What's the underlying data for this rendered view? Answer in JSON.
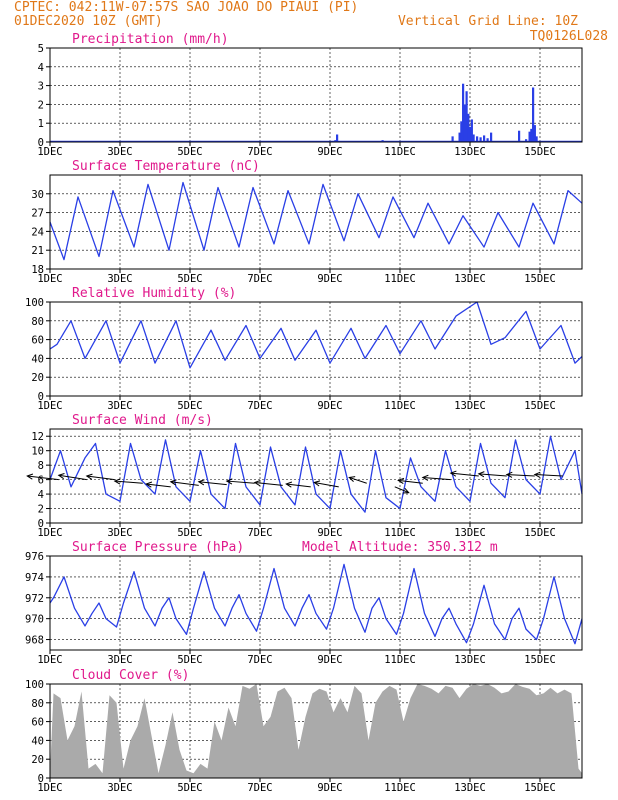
{
  "header": {
    "line1": "CPTEC:   042:11W-07:57S  SAO JOAO DO PIAUI (PI)",
    "line2_left": "01DEC2020 10Z (GMT)",
    "line2_right": "Vertical Grid Line: 10Z",
    "line3_right": "TQ0126L028"
  },
  "colors": {
    "header": "#e07818",
    "title": "#e0198c",
    "line": "#2a3fe6",
    "cloud": "#aaaaaa",
    "grid": "#000000"
  },
  "x_axis": {
    "tick_labels": [
      "1DEC",
      "3DEC",
      "5DEC",
      "7DEC",
      "9DEC",
      "11DEC",
      "13DEC",
      "15DEC"
    ],
    "tick_days": [
      1,
      3,
      5,
      7,
      9,
      11,
      13,
      15
    ],
    "range_days": [
      1,
      16.2
    ]
  },
  "chart_data": [
    {
      "type": "bar",
      "title": "Precipitation (mm/h)",
      "ylim": [
        0,
        5
      ],
      "yticks": [
        0,
        1,
        2,
        3,
        4,
        5
      ],
      "x_unit": "day of Dec 2020",
      "x": [
        9.15,
        9.2,
        10.1,
        10.5,
        12.5,
        12.7,
        12.75,
        12.8,
        12.85,
        12.9,
        12.95,
        13.0,
        13.05,
        13.1,
        13.2,
        13.3,
        13.4,
        13.5,
        13.6,
        14.4,
        14.6,
        14.7,
        14.75,
        14.8,
        14.85,
        14.9
      ],
      "values": [
        0.1,
        0.4,
        0.05,
        0.1,
        0.3,
        0.5,
        1.1,
        3.1,
        2.0,
        2.7,
        1.5,
        0.8,
        1.2,
        0.4,
        0.3,
        0.25,
        0.35,
        0.2,
        0.5,
        0.6,
        0.15,
        0.55,
        0.7,
        2.9,
        0.9,
        0.3
      ]
    },
    {
      "type": "line",
      "title": "Surface Temperature (nC)",
      "ylim": [
        18,
        33
      ],
      "yticks": [
        18,
        21,
        24,
        27,
        30
      ],
      "x_unit": "day of Dec 2020",
      "x": [
        1.0,
        1.4,
        1.8,
        2.4,
        2.8,
        3.4,
        3.8,
        4.4,
        4.8,
        5.4,
        5.8,
        6.4,
        6.8,
        7.4,
        7.8,
        8.4,
        8.8,
        9.4,
        9.8,
        10.4,
        10.8,
        11.4,
        11.8,
        12.4,
        12.8,
        13.4,
        13.8,
        14.4,
        14.8,
        15.4,
        15.8,
        16.2
      ],
      "values": [
        25.5,
        19.5,
        29.5,
        20.0,
        30.5,
        21.5,
        31.5,
        21.0,
        31.8,
        21.0,
        31.0,
        21.5,
        31.0,
        22.0,
        30.5,
        22.0,
        31.5,
        22.5,
        30.0,
        23.0,
        29.5,
        23.0,
        28.5,
        22.0,
        26.5,
        21.5,
        27.0,
        21.5,
        28.5,
        22.0,
        30.5,
        28.5
      ]
    },
    {
      "type": "line",
      "title": "Relative Humidity (%)",
      "ylim": [
        0,
        100
      ],
      "yticks": [
        0,
        20,
        40,
        60,
        80,
        100
      ],
      "x_unit": "day of Dec 2020",
      "x": [
        1.0,
        1.2,
        1.6,
        2.0,
        2.6,
        3.0,
        3.6,
        4.0,
        4.6,
        5.0,
        5.6,
        6.0,
        6.6,
        7.0,
        7.6,
        8.0,
        8.6,
        9.0,
        9.6,
        10.0,
        10.6,
        11.0,
        11.6,
        12.0,
        12.6,
        13.2,
        13.6,
        14.0,
        14.6,
        15.0,
        15.6,
        16.0,
        16.2
      ],
      "values": [
        50.0,
        55.0,
        80.0,
        40.0,
        80.0,
        35.0,
        80.0,
        35.0,
        80.0,
        30.0,
        70.0,
        38.0,
        75.0,
        40.0,
        72.0,
        38.0,
        70.0,
        35.0,
        72.0,
        40.0,
        75.0,
        45.0,
        80.0,
        50.0,
        85.0,
        100.0,
        55.0,
        62.0,
        90.0,
        50.0,
        75.0,
        35.0,
        42.0
      ]
    },
    {
      "type": "line",
      "title": "Surface Wind (m/s)",
      "ylim": [
        0,
        13
      ],
      "yticks": [
        0,
        2,
        4,
        6,
        8,
        10,
        12
      ],
      "x_unit": "day of Dec 2020",
      "x": [
        1.0,
        1.3,
        1.6,
        2.0,
        2.3,
        2.6,
        3.0,
        3.3,
        3.6,
        4.0,
        4.3,
        4.6,
        5.0,
        5.3,
        5.6,
        6.0,
        6.3,
        6.6,
        7.0,
        7.3,
        7.6,
        8.0,
        8.3,
        8.6,
        9.0,
        9.3,
        9.6,
        10.0,
        10.3,
        10.6,
        11.0,
        11.3,
        11.6,
        12.0,
        12.3,
        12.6,
        13.0,
        13.3,
        13.6,
        14.0,
        14.3,
        14.6,
        15.0,
        15.3,
        15.6,
        16.0,
        16.2
      ],
      "values": [
        6.0,
        10.0,
        5.0,
        9.0,
        11.0,
        4.0,
        3.0,
        11.0,
        6.0,
        4.0,
        11.5,
        5.0,
        3.0,
        10.0,
        4.0,
        2.0,
        11.0,
        5.0,
        2.5,
        10.5,
        5.0,
        2.5,
        10.5,
        4.0,
        2.0,
        10.0,
        4.0,
        1.5,
        10.0,
        3.5,
        2.0,
        9.0,
        5.0,
        3.0,
        10.0,
        5.0,
        3.0,
        11.0,
        5.5,
        3.5,
        11.5,
        6.0,
        4.0,
        12.0,
        6.0,
        10.0,
        4.0
      ],
      "arrows": {
        "x": [
          1.25,
          2.05,
          2.85,
          3.65,
          4.45,
          5.25,
          6.05,
          6.85,
          7.65,
          8.45,
          9.25,
          10.05,
          10.85,
          11.65,
          12.45,
          13.25,
          14.05,
          14.85,
          15.65
        ],
        "y": [
          6.0,
          6.0,
          6.0,
          5.5,
          5.0,
          5.2,
          5.3,
          5.5,
          5.2,
          5.0,
          5.0,
          5.5,
          5.0,
          5.5,
          6.0,
          6.5,
          6.5,
          6.5,
          6.5
        ],
        "dx": [
          -0.9,
          -0.8,
          -0.8,
          -0.8,
          -0.7,
          -0.8,
          -0.8,
          -0.8,
          -0.8,
          -0.7,
          -0.7,
          -0.5,
          0.4,
          -0.7,
          -0.8,
          -0.8,
          -0.8,
          -0.8,
          -0.8
        ],
        "dy": [
          0.5,
          0.6,
          0.5,
          0.3,
          0.4,
          0.5,
          0.4,
          0.3,
          0.4,
          0.4,
          0.6,
          0.8,
          -0.8,
          0.4,
          0.3,
          0.4,
          0.3,
          0.2,
          0.2
        ]
      }
    },
    {
      "type": "line",
      "title": "Surface Pressure (hPa)",
      "annotation": "Model Altitude: 350.312 m",
      "ylim": [
        967,
        976
      ],
      "yticks": [
        968,
        970,
        972,
        974,
        976
      ],
      "x_unit": "day of Dec 2020",
      "x": [
        1.0,
        1.1,
        1.4,
        1.7,
        2.0,
        2.2,
        2.4,
        2.6,
        2.9,
        3.1,
        3.4,
        3.7,
        4.0,
        4.2,
        4.4,
        4.6,
        4.9,
        5.1,
        5.4,
        5.7,
        6.0,
        6.2,
        6.4,
        6.6,
        6.9,
        7.1,
        7.4,
        7.7,
        8.0,
        8.2,
        8.4,
        8.6,
        8.9,
        9.1,
        9.4,
        9.7,
        10.0,
        10.2,
        10.4,
        10.6,
        10.9,
        11.1,
        11.4,
        11.7,
        12.0,
        12.2,
        12.4,
        12.6,
        12.9,
        13.1,
        13.4,
        13.7,
        14.0,
        14.2,
        14.4,
        14.6,
        14.9,
        15.1,
        15.4,
        15.7,
        16.0,
        16.2
      ],
      "values": [
        971.5,
        972.0,
        974.0,
        971.0,
        969.3,
        970.5,
        971.5,
        970.0,
        969.2,
        971.5,
        974.5,
        971.0,
        969.3,
        971.0,
        972.0,
        970.0,
        968.5,
        971.0,
        974.5,
        971.0,
        969.3,
        971.0,
        972.3,
        970.5,
        968.8,
        971.0,
        974.8,
        971.0,
        969.3,
        971.0,
        972.3,
        970.5,
        969.0,
        971.0,
        975.2,
        971.0,
        968.7,
        971.0,
        972.0,
        970.0,
        968.5,
        970.5,
        974.8,
        970.5,
        968.3,
        970.0,
        971.0,
        969.5,
        967.7,
        969.5,
        973.2,
        969.5,
        968.0,
        970.0,
        971.0,
        969.0,
        968.0,
        970.0,
        974.0,
        970.0,
        967.6,
        970.0
      ]
    },
    {
      "type": "area",
      "title": "Cloud Cover (%)",
      "ylim": [
        0,
        100
      ],
      "yticks": [
        0,
        20,
        40,
        60,
        80,
        100
      ],
      "x_unit": "day of Dec 2020",
      "x": [
        1.0,
        1.1,
        1.3,
        1.5,
        1.7,
        1.9,
        2.1,
        2.3,
        2.5,
        2.7,
        2.9,
        3.1,
        3.3,
        3.5,
        3.7,
        3.9,
        4.1,
        4.3,
        4.5,
        4.7,
        4.9,
        5.1,
        5.3,
        5.5,
        5.7,
        5.9,
        6.1,
        6.3,
        6.5,
        6.7,
        6.9,
        7.1,
        7.3,
        7.5,
        7.7,
        7.9,
        8.1,
        8.3,
        8.5,
        8.7,
        8.9,
        9.1,
        9.3,
        9.5,
        9.7,
        9.9,
        10.1,
        10.3,
        10.5,
        10.7,
        10.9,
        11.1,
        11.3,
        11.5,
        11.7,
        11.9,
        12.1,
        12.3,
        12.5,
        12.7,
        12.9,
        13.1,
        13.3,
        13.5,
        13.7,
        13.9,
        14.1,
        14.3,
        14.5,
        14.7,
        14.9,
        15.1,
        15.3,
        15.5,
        15.7,
        15.9,
        16.1,
        16.2
      ],
      "values": [
        5.0,
        90.0,
        85.0,
        40.0,
        55.0,
        92.0,
        10.0,
        15.0,
        5.0,
        88.0,
        80.0,
        10.0,
        40.0,
        55.0,
        85.0,
        45.0,
        5.0,
        35.0,
        70.0,
        30.0,
        8.0,
        5.0,
        15.0,
        10.0,
        60.0,
        40.0,
        75.0,
        55.0,
        98.0,
        95.0,
        100.0,
        55.0,
        65.0,
        92.0,
        96.0,
        85.0,
        30.0,
        65.0,
        90.0,
        95.0,
        92.0,
        70.0,
        85.0,
        70.0,
        98.0,
        90.0,
        40.0,
        80.0,
        92.0,
        98.0,
        94.0,
        60.0,
        85.0,
        100.0,
        98.0,
        95.0,
        90.0,
        98.0,
        96.0,
        85.0,
        95.0,
        100.0,
        98.0,
        100.0,
        96.0,
        90.0,
        92.0,
        100.0,
        97.0,
        95.0,
        88.0,
        90.0,
        96.0,
        90.0,
        94.0,
        90.0,
        10.0,
        5.0
      ]
    }
  ]
}
